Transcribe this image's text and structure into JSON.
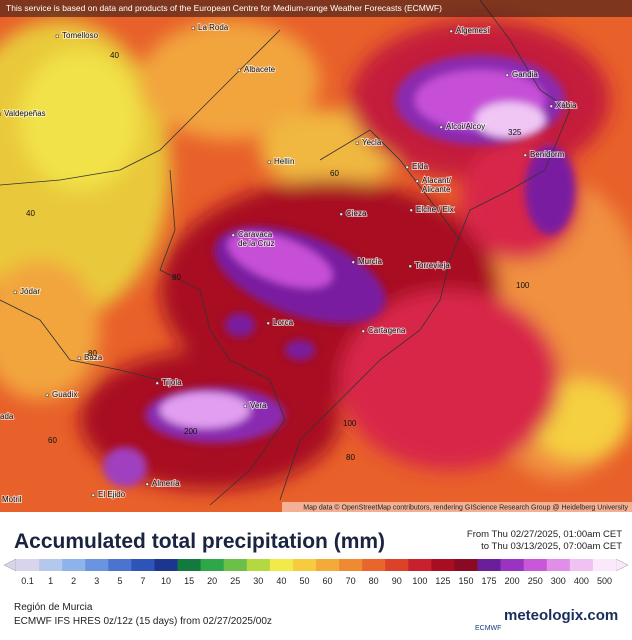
{
  "banner": "This service is based on data and products of the European Centre for Medium-range Weather Forecasts (ECMWF)",
  "cities": [
    "Tomelloso",
    "La Roda",
    "Albacete",
    "Valdepeñas",
    "Algemesí",
    "Gandia",
    "Xàbia",
    "Alcoi/Alcoy",
    "Benidorm",
    "Hellín",
    "Yecla",
    "Elda",
    "Alacant/\nAlicante",
    "Elche / Elx",
    "Caravaca\nde la Cruz",
    "Cieza",
    "Murcia",
    "Torrevieja",
    "Jódar",
    "Lorca",
    "Cartagena",
    "Baza",
    "Guadix",
    "Tíjola",
    "Vera",
    "Almería",
    "El Ejido",
    "Motril",
    "ada"
  ],
  "contours": [
    40,
    40,
    60,
    80,
    80,
    100,
    100,
    200,
    325,
    80,
    60
  ],
  "attribution": "Map data © OpenStreetMap contributors, rendering GIScience Research Group @ Heidelberg University",
  "legend": {
    "title": "Accumulated total precipitation (mm)",
    "from": "From Thu 02/27/2025, 01:00am CET",
    "to": "to Thu 03/13/2025, 07:00am CET",
    "levels": [
      0.1,
      1,
      2,
      3,
      5,
      7,
      10,
      15,
      20,
      25,
      30,
      40,
      50,
      60,
      70,
      80,
      90,
      100,
      125,
      150,
      175,
      200,
      250,
      300,
      400,
      500
    ],
    "colors": [
      "#d8d4ec",
      "#b4c8ee",
      "#8eb2ea",
      "#6a94e0",
      "#4a74d0",
      "#2e54b8",
      "#1c3690",
      "#127a3c",
      "#2ea64a",
      "#6cc04a",
      "#b4d840",
      "#f2ea4a",
      "#f6cc3e",
      "#f4aa38",
      "#f08a32",
      "#e8662c",
      "#dc4228",
      "#c8202c",
      "#a80d22",
      "#8a0a24",
      "#6a1f9a",
      "#9a34c0",
      "#c858d8",
      "#e08ee8",
      "#f0c2f4",
      "#fae8fb"
    ]
  },
  "footer": {
    "region": "Región de Murcia",
    "model": "ECMWF IFS HRES 0z/12z (15 days) from  02/27/2025/00z",
    "ecmwf": "ECMWF",
    "brand": "meteologix.com"
  }
}
